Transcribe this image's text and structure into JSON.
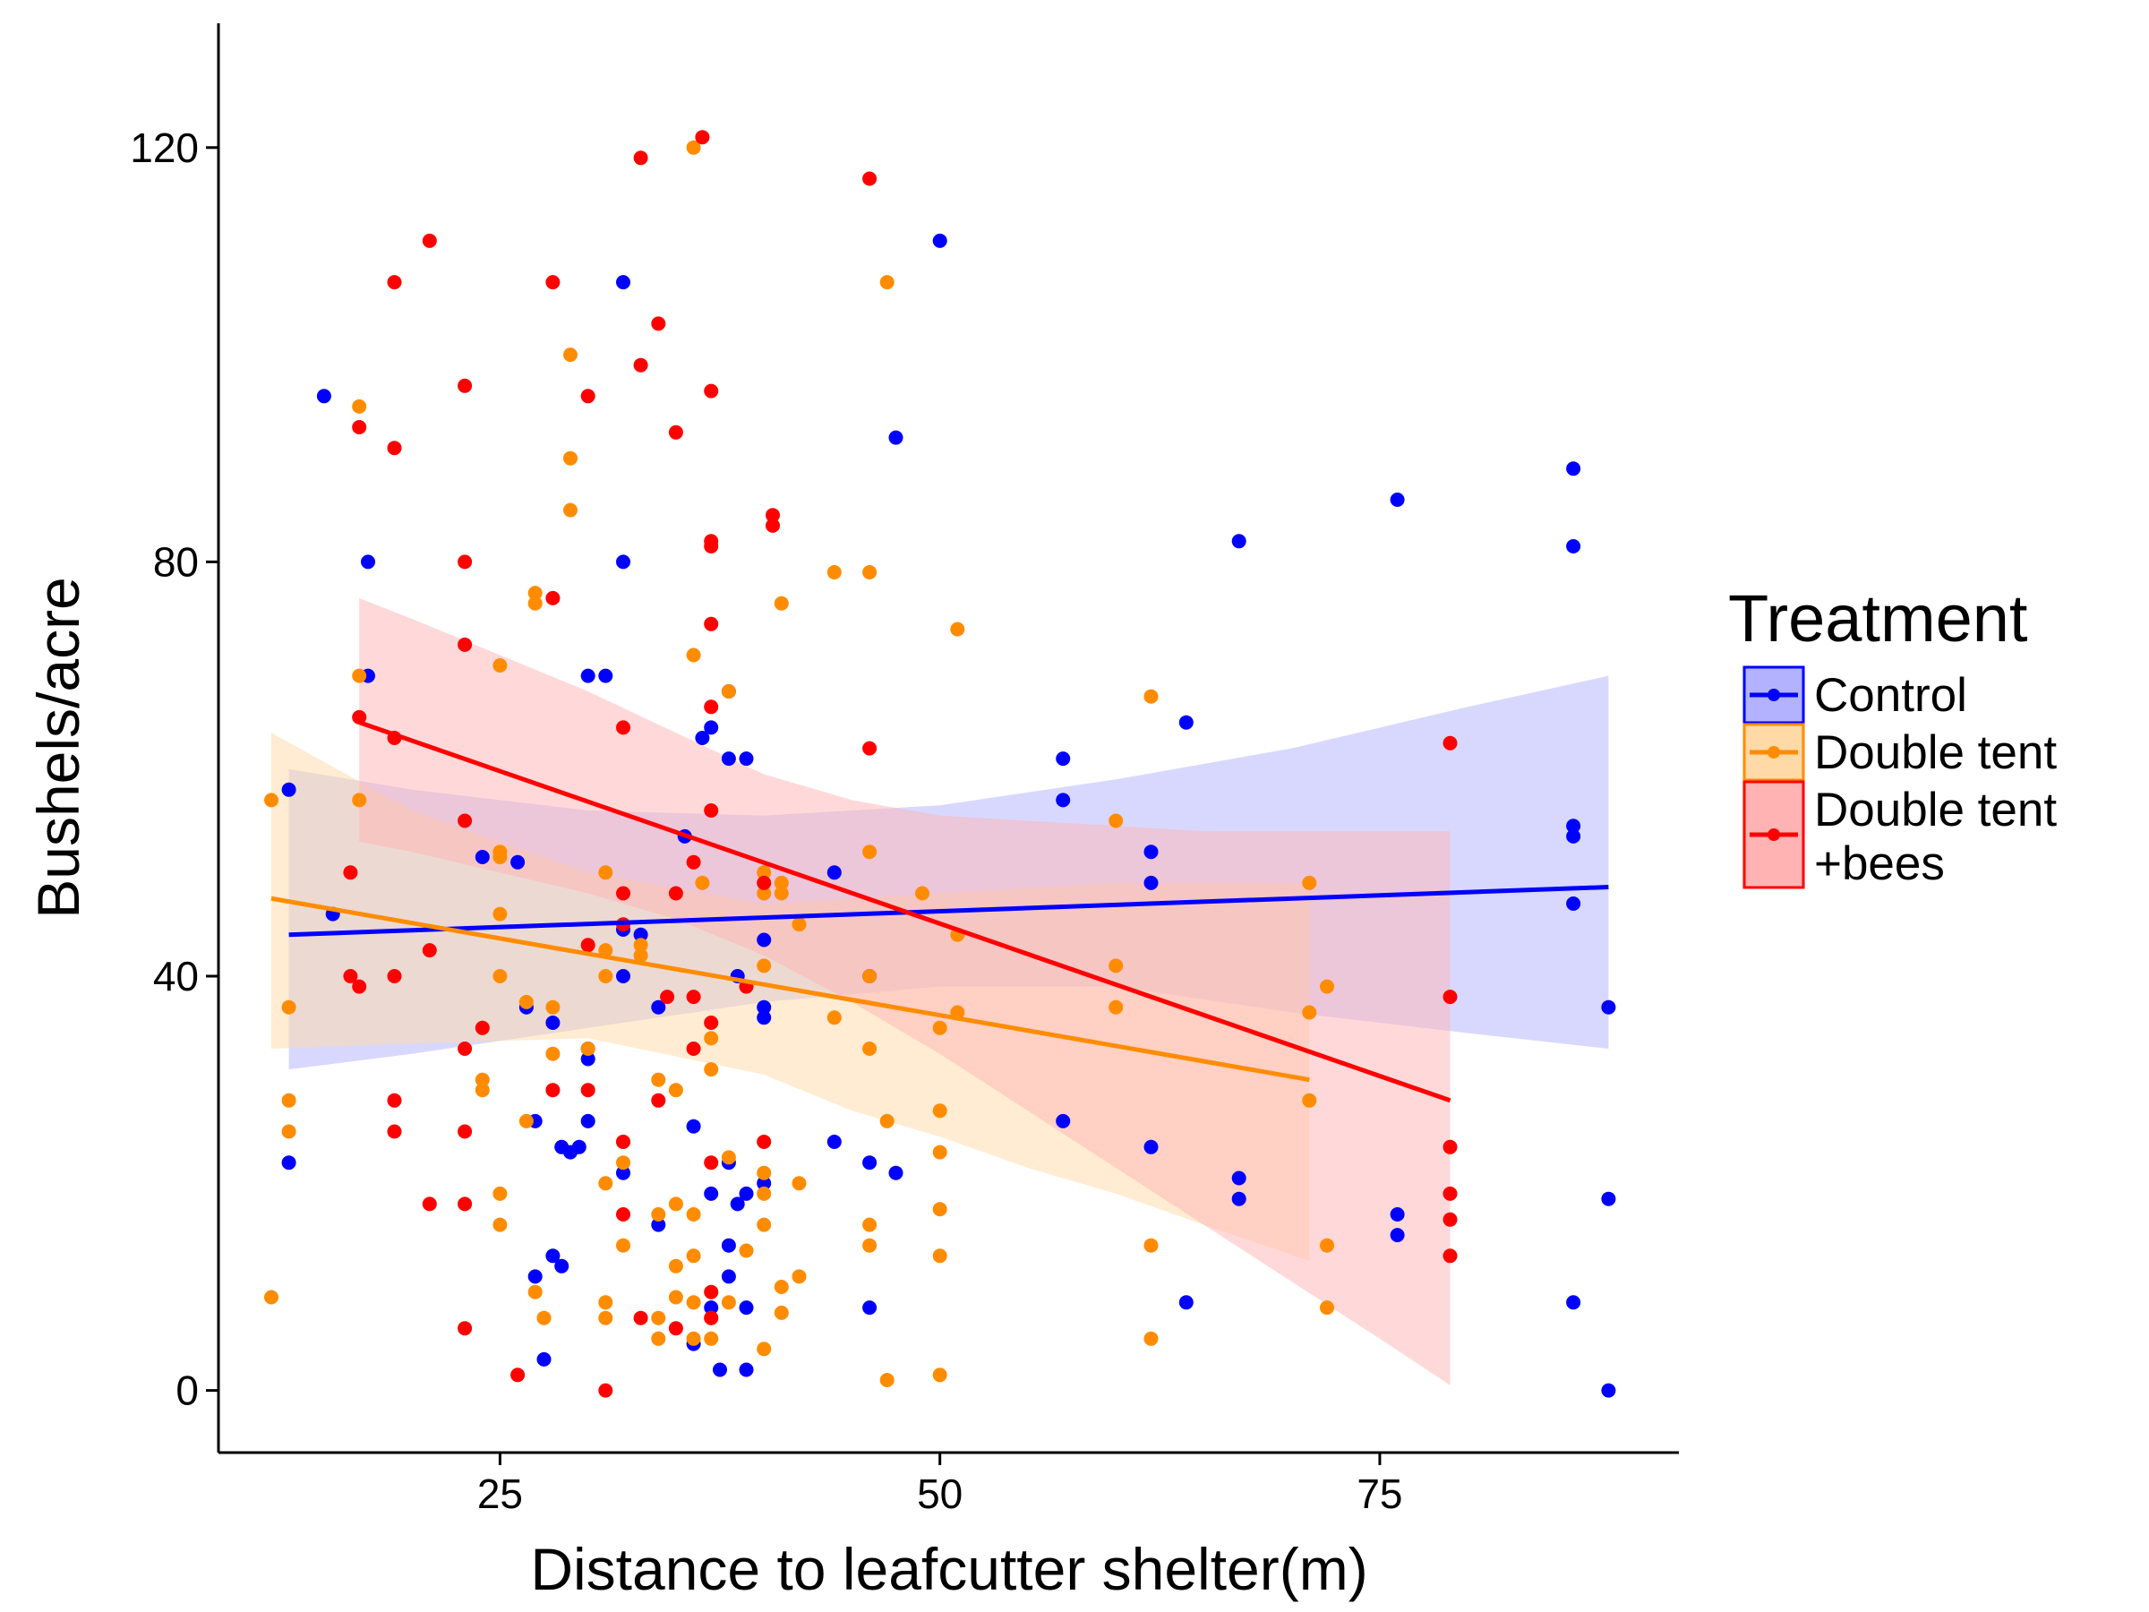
{
  "chart_data": {
    "type": "scatter",
    "title": "",
    "xlabel": "Distance to leafcutter shelter(m)",
    "ylabel": "Bushels/acre",
    "xlim": [
      9,
      92
    ],
    "ylim": [
      -6,
      132
    ],
    "x_ticks": [
      25,
      50,
      75
    ],
    "y_ticks": [
      0,
      40,
      80,
      120
    ],
    "grid": false,
    "legend": {
      "title": "Treatment",
      "position": "right",
      "entries": [
        {
          "label_lines": [
            "Control"
          ]
        },
        {
          "label_lines": [
            "Double tent"
          ]
        },
        {
          "label_lines": [
            "Double tent",
            "+bees"
          ]
        }
      ]
    },
    "series": [
      {
        "name": "Control",
        "color": "#0000FF",
        "fill_color": "#B2B2FF",
        "fit": {
          "x": [
            13,
            88
          ],
          "y": [
            44,
            48.6
          ]
        },
        "band": {
          "x": [
            13,
            20,
            30,
            40,
            50,
            60,
            70,
            80,
            88
          ],
          "lower": [
            31,
            32.5,
            35,
            37.5,
            39,
            39,
            36.5,
            34.5,
            33
          ],
          "upper": [
            60,
            58,
            56,
            55.5,
            56.5,
            59,
            62,
            66,
            69
          ]
        },
        "points": [
          [
            13,
            58
          ],
          [
            13,
            22
          ],
          [
            15,
            96
          ],
          [
            15.5,
            46
          ],
          [
            17.5,
            80
          ],
          [
            17.5,
            69
          ],
          [
            24,
            51.5
          ],
          [
            26,
            51
          ],
          [
            26.5,
            37
          ],
          [
            27,
            26
          ],
          [
            27,
            11
          ],
          [
            27.5,
            3
          ],
          [
            28,
            35.5
          ],
          [
            28,
            13
          ],
          [
            28.5,
            12
          ],
          [
            28.5,
            23.5
          ],
          [
            29,
            23
          ],
          [
            29.5,
            23.5
          ],
          [
            30,
            33
          ],
          [
            30,
            26
          ],
          [
            30,
            69
          ],
          [
            30,
            32
          ],
          [
            31,
            69
          ],
          [
            32,
            44.5
          ],
          [
            32,
            40
          ],
          [
            32,
            107
          ],
          [
            32,
            80
          ],
          [
            32,
            21
          ],
          [
            33,
            44
          ],
          [
            34,
            16
          ],
          [
            34,
            37
          ],
          [
            35.5,
            53.5
          ],
          [
            36,
            4.5
          ],
          [
            36.5,
            63
          ],
          [
            36,
            25.5
          ],
          [
            37,
            64
          ],
          [
            37,
            19
          ],
          [
            37,
            8
          ],
          [
            37.5,
            2
          ],
          [
            38,
            22
          ],
          [
            38.5,
            40
          ],
          [
            38.5,
            18
          ],
          [
            38,
            14
          ],
          [
            38,
            11
          ],
          [
            38,
            61
          ],
          [
            38,
            67.5
          ],
          [
            39,
            61
          ],
          [
            39,
            19
          ],
          [
            39,
            2
          ],
          [
            39,
            8
          ],
          [
            40,
            36
          ],
          [
            40,
            37
          ],
          [
            40,
            20
          ],
          [
            40,
            43.5
          ],
          [
            44,
            50
          ],
          [
            44,
            24
          ],
          [
            46,
            40
          ],
          [
            46,
            22
          ],
          [
            46,
            8
          ],
          [
            47.5,
            21
          ],
          [
            47.5,
            92
          ],
          [
            50,
            111
          ],
          [
            57,
            57
          ],
          [
            57,
            61
          ],
          [
            57,
            26
          ],
          [
            62,
            23.5
          ],
          [
            62,
            52
          ],
          [
            62,
            49
          ],
          [
            64,
            64.5
          ],
          [
            64,
            8.5
          ],
          [
            67,
            82
          ],
          [
            67,
            20.5
          ],
          [
            67,
            18.5
          ],
          [
            76,
            86
          ],
          [
            76,
            17
          ],
          [
            76,
            15
          ],
          [
            86,
            89
          ],
          [
            86,
            81.5
          ],
          [
            86,
            54.5
          ],
          [
            86,
            53.5
          ],
          [
            86,
            47
          ],
          [
            86,
            8.5
          ],
          [
            88,
            37
          ],
          [
            88,
            18.5
          ],
          [
            88,
            0
          ]
        ]
      },
      {
        "name": "Double tent",
        "color": "#FF8C00",
        "fill_color": "#FFD9A6",
        "fit": {
          "x": [
            12,
            71
          ],
          "y": [
            47.5,
            30
          ]
        },
        "band": {
          "x": [
            12,
            20,
            30,
            40,
            45,
            50,
            55,
            60,
            65,
            71
          ],
          "lower": [
            33,
            33.5,
            34,
            30.5,
            27,
            24.5,
            21.5,
            19,
            16,
            12.5
          ],
          "upper": [
            63.5,
            56,
            50,
            47,
            47.5,
            48,
            48.5,
            49,
            49,
            49
          ]
        },
        "points": [
          [
            12,
            57
          ],
          [
            12,
            9
          ],
          [
            13,
            37
          ],
          [
            13,
            28
          ],
          [
            13,
            25
          ],
          [
            17,
            95
          ],
          [
            17,
            69
          ],
          [
            17,
            57
          ],
          [
            24,
            30
          ],
          [
            24,
            29
          ],
          [
            25,
            40
          ],
          [
            25,
            16
          ],
          [
            25,
            46
          ],
          [
            25,
            70
          ],
          [
            25,
            52
          ],
          [
            25,
            19
          ],
          [
            25,
            51.5
          ],
          [
            26.5,
            37.5
          ],
          [
            26.5,
            26
          ],
          [
            27,
            77
          ],
          [
            27,
            76
          ],
          [
            27,
            9.5
          ],
          [
            27.5,
            7
          ],
          [
            28,
            37
          ],
          [
            28,
            32.5
          ],
          [
            29,
            100
          ],
          [
            29,
            90
          ],
          [
            29,
            85
          ],
          [
            30,
            33
          ],
          [
            31,
            50
          ],
          [
            31,
            20
          ],
          [
            31,
            42.5
          ],
          [
            31,
            40
          ],
          [
            31,
            8.5
          ],
          [
            31,
            7
          ],
          [
            32,
            24
          ],
          [
            32,
            22
          ],
          [
            32,
            14
          ],
          [
            33,
            42
          ],
          [
            33,
            43
          ],
          [
            34,
            17
          ],
          [
            34,
            30
          ],
          [
            34,
            5
          ],
          [
            34,
            7
          ],
          [
            35,
            29
          ],
          [
            35,
            9
          ],
          [
            35,
            18
          ],
          [
            35,
            12
          ],
          [
            36,
            17
          ],
          [
            36,
            13
          ],
          [
            36,
            8.5
          ],
          [
            36,
            5
          ],
          [
            36,
            71
          ],
          [
            36,
            120
          ],
          [
            36.5,
            49
          ],
          [
            37,
            31
          ],
          [
            37,
            34
          ],
          [
            37,
            7
          ],
          [
            37,
            5
          ],
          [
            38,
            67.5
          ],
          [
            38,
            22.5
          ],
          [
            38,
            8.5
          ],
          [
            39,
            13.5
          ],
          [
            40,
            50
          ],
          [
            40,
            48
          ],
          [
            40,
            41
          ],
          [
            40,
            21
          ],
          [
            40,
            19
          ],
          [
            40,
            16
          ],
          [
            40,
            4
          ],
          [
            41,
            76
          ],
          [
            41,
            49
          ],
          [
            41,
            48
          ],
          [
            41,
            7.5
          ],
          [
            41,
            10
          ],
          [
            42,
            45
          ],
          [
            42,
            20
          ],
          [
            42,
            11
          ],
          [
            44,
            79
          ],
          [
            44,
            36
          ],
          [
            46,
            79
          ],
          [
            46,
            52
          ],
          [
            46,
            40
          ],
          [
            46,
            33
          ],
          [
            46,
            16
          ],
          [
            46,
            14
          ],
          [
            47,
            107
          ],
          [
            47,
            26
          ],
          [
            47,
            1
          ],
          [
            49,
            48
          ],
          [
            50,
            35
          ],
          [
            50,
            27
          ],
          [
            50,
            23
          ],
          [
            50,
            17.5
          ],
          [
            50,
            13
          ],
          [
            50,
            1.5
          ],
          [
            51,
            73.5
          ],
          [
            51,
            36.5
          ],
          [
            51,
            44
          ],
          [
            60,
            55
          ],
          [
            60,
            41
          ],
          [
            60,
            37
          ],
          [
            62,
            67
          ],
          [
            62,
            14
          ],
          [
            62,
            5
          ],
          [
            71,
            49
          ],
          [
            71,
            36.5
          ],
          [
            71,
            28
          ],
          [
            72,
            39
          ],
          [
            72,
            14
          ],
          [
            72,
            8
          ]
        ]
      },
      {
        "name": "Double tent\n+bees",
        "color": "#FF0000",
        "fill_color": "#FFB3B3",
        "fit": {
          "x": [
            17,
            79
          ],
          "y": [
            64.5,
            28
          ]
        },
        "band": {
          "x": [
            17,
            20,
            25,
            30,
            35,
            40,
            45,
            50,
            55,
            60,
            65,
            70,
            75,
            79
          ],
          "lower": [
            53,
            52,
            50,
            48,
            45.5,
            42,
            37.5,
            32.5,
            27,
            21.5,
            16,
            10.5,
            5,
            0.5
          ],
          "upper": [
            76.5,
            74.5,
            71,
            67.5,
            63.5,
            59.5,
            57,
            55.5,
            55,
            54.5,
            54,
            54,
            54,
            54
          ]
        },
        "points": [
          [
            16.5,
            50
          ],
          [
            16.5,
            40
          ],
          [
            17,
            93
          ],
          [
            17,
            65
          ],
          [
            17,
            39
          ],
          [
            19,
            107
          ],
          [
            19,
            91
          ],
          [
            19,
            63
          ],
          [
            19,
            40
          ],
          [
            19,
            28
          ],
          [
            19,
            25
          ],
          [
            21,
            111
          ],
          [
            21,
            18
          ],
          [
            21,
            42.5
          ],
          [
            23,
            97
          ],
          [
            23,
            80
          ],
          [
            23,
            72
          ],
          [
            23,
            55
          ],
          [
            23,
            33
          ],
          [
            23,
            25
          ],
          [
            23,
            18
          ],
          [
            23,
            6
          ],
          [
            24,
            35
          ],
          [
            26,
            1.5
          ],
          [
            28,
            107
          ],
          [
            28,
            76.5
          ],
          [
            28,
            29
          ],
          [
            30,
            96
          ],
          [
            30,
            29
          ],
          [
            30,
            43
          ],
          [
            31,
            0
          ],
          [
            32,
            64
          ],
          [
            32,
            48
          ],
          [
            32,
            45
          ],
          [
            32,
            24
          ],
          [
            32,
            17
          ],
          [
            33,
            119
          ],
          [
            33,
            99
          ],
          [
            33,
            7
          ],
          [
            34,
            103
          ],
          [
            34,
            28
          ],
          [
            34.5,
            38
          ],
          [
            35,
            92.5
          ],
          [
            35,
            48
          ],
          [
            35,
            6
          ],
          [
            36,
            51
          ],
          [
            36,
            38
          ],
          [
            36,
            33
          ],
          [
            36.5,
            121
          ],
          [
            37,
            96.5
          ],
          [
            37,
            82
          ],
          [
            37,
            81.5
          ],
          [
            37,
            74
          ],
          [
            37,
            66
          ],
          [
            37,
            56
          ],
          [
            37,
            35.5
          ],
          [
            37,
            22
          ],
          [
            37,
            9.5
          ],
          [
            37,
            7
          ],
          [
            39,
            39
          ],
          [
            40,
            24
          ],
          [
            40,
            49
          ],
          [
            40.5,
            84.5
          ],
          [
            40.5,
            83.5
          ],
          [
            46,
            117
          ],
          [
            46,
            62
          ],
          [
            79,
            62.5
          ],
          [
            79,
            38
          ],
          [
            79,
            23.5
          ],
          [
            79,
            19
          ],
          [
            79,
            16.5
          ],
          [
            79,
            13
          ]
        ]
      }
    ]
  }
}
